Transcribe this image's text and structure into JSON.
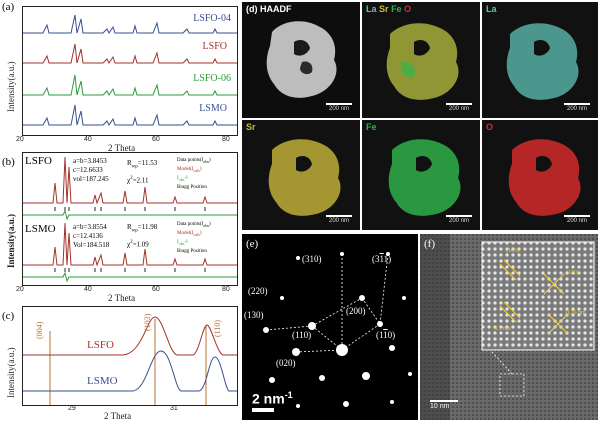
{
  "panel_a": {
    "label": "(a)",
    "ylabel": "Intensity(a.u.)",
    "xlabel": "2 Theta",
    "xticks": [
      "20",
      "40",
      "60",
      "80"
    ],
    "traces": [
      {
        "name": "LSFO-04",
        "color": "#3a4f8f"
      },
      {
        "name": "LSFO",
        "color": "#a4322a"
      },
      {
        "name": "LSFO-06",
        "color": "#2f9a3a"
      },
      {
        "name": "LSMO",
        "color": "#3a4f8f"
      }
    ]
  },
  "panel_b": {
    "label": "(b)",
    "ylabel": "Intensity(a.u.)",
    "xlabel": "2 Theta",
    "xticks": [
      "20",
      "40",
      "60",
      "80"
    ],
    "lsfo": {
      "name": "LSFO",
      "line1": "a=b=3.8453",
      "line2": "c=12.6633",
      "line3": "vol=187.245",
      "rwp": "R",
      "rwp_sub": "wp",
      "rwp_val": "=11.53",
      "chi": "χ",
      "chi_val": "=2.11"
    },
    "lsmo": {
      "name": "LSMO",
      "line1": "a=b=3.8554",
      "line2": "c=12.4136",
      "line3": "Vol=184.518",
      "rwp": "R",
      "rwp_sub": "wp",
      "rwp_val": "=11.98",
      "chi": "χ",
      "chi_val": "=1.09"
    },
    "legend": [
      "Data points(I",
      "Model(I",
      "I",
      "Bragg Position"
    ],
    "legend_sub": [
      "obs",
      "cals",
      "obs",
      "-I"
    ]
  },
  "panel_c": {
    "label": "(c)",
    "ylabel": "Intensity(a.u.)",
    "xlabel": "2 Theta",
    "xticks": [
      "29",
      "31"
    ],
    "peaks": [
      "(004)",
      "(103)",
      "(110)"
    ],
    "traces": [
      {
        "name": "LSFO",
        "color": "#a4322a"
      },
      {
        "name": "LSMO",
        "color": "#3a4f8f"
      }
    ]
  },
  "panel_d": {
    "label": "(d) HAADF",
    "tiles": [
      {
        "title": "HAADF",
        "scale": "200 nm"
      },
      {
        "title_parts": [
          "La",
          "Sr",
          "Fe",
          "O"
        ],
        "scale": "200 nm"
      },
      {
        "title": "La",
        "scale": "200 nm",
        "color": "#5fc4b8"
      },
      {
        "title": "Sr",
        "scale": "200 nm",
        "color": "#c9b93a"
      },
      {
        "title": "Fe",
        "scale": "200 nm",
        "color": "#2fb04a"
      },
      {
        "title": "O",
        "scale": "200 nm",
        "color": "#d22a2a"
      }
    ],
    "composite_colors": [
      "#5fc4b8",
      "#c9b93a",
      "#2fb04a",
      "#d22a2a"
    ]
  },
  "panel_e": {
    "label": "(e)",
    "scale": "2 nm",
    "scale_sup": "-1",
    "spots": [
      "(310)",
      "(3",
      "1)",
      "(220)",
      "(200)",
      "(130)",
      "(110)",
      "(1",
      "0)",
      "(020)"
    ]
  },
  "panel_f": {
    "label": "(f)",
    "scale": "10 nm",
    "inset_labels": [
      "(103)",
      "(110)",
      "0.3 nm",
      "0.26 nm"
    ]
  }
}
